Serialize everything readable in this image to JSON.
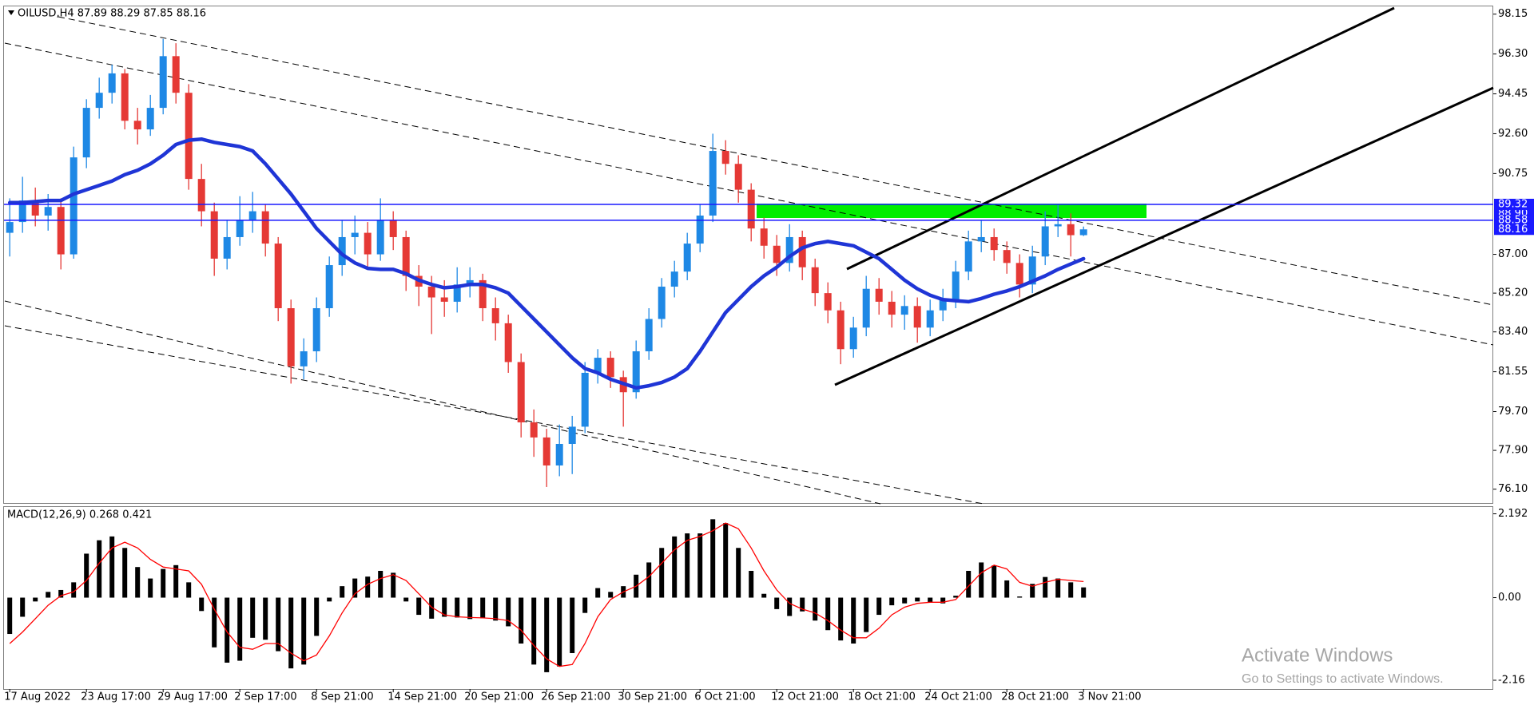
{
  "chart_data": [
    {
      "type": "candlestick",
      "title": "OILUSD,H4  87.89 88.29 87.85 88.16",
      "categories": [
        "17 Aug 2022",
        null,
        null,
        null,
        null,
        null,
        "23 Aug 17:00",
        null,
        null,
        null,
        null,
        null,
        "29 Aug 17:00",
        null,
        null,
        null,
        null,
        null,
        "2 Sep 17:00",
        null,
        null,
        null,
        null,
        null,
        "8 Sep 21:00",
        null,
        null,
        null,
        null,
        null,
        "14 Sep 21:00",
        null,
        null,
        null,
        null,
        null,
        "20 Sep 21:00",
        null,
        null,
        null,
        null,
        null,
        "26 Sep 21:00",
        null,
        null,
        null,
        null,
        null,
        "30 Sep 21:00",
        null,
        null,
        null,
        null,
        null,
        "6 Oct 21:00",
        null,
        null,
        null,
        null,
        null,
        "12 Oct 21:00",
        null,
        null,
        null,
        null,
        null,
        "18 Oct 21:00",
        null,
        null,
        null,
        null,
        null,
        "24 Oct 21:00",
        null,
        null,
        null,
        null,
        null,
        "28 Oct 21:00",
        null,
        null,
        null,
        null,
        null,
        "3 Nov 21:00"
      ],
      "open": [
        88.0,
        88.5,
        89.5,
        88.8,
        89.2,
        87.0,
        91.5,
        93.8,
        94.5,
        95.4,
        93.2,
        92.8,
        93.8,
        96.2,
        94.5,
        90.5,
        89.0,
        86.8,
        87.8,
        88.6,
        89.0,
        87.5,
        84.5,
        81.8,
        82.5,
        84.5,
        86.5,
        87.8,
        88.0,
        87.0,
        88.6,
        87.8,
        86.0,
        85.5,
        85.0,
        84.8,
        85.6,
        85.8,
        84.5,
        83.8,
        82.0,
        79.2,
        78.5,
        77.2,
        78.2,
        79.0,
        81.5,
        82.2,
        81.3,
        80.6,
        82.5,
        84.0,
        85.5,
        86.2,
        87.5,
        88.8,
        91.8,
        91.2,
        90.0,
        88.2,
        87.4,
        86.6,
        87.8,
        86.4,
        85.2,
        84.4,
        82.6,
        83.6,
        85.4,
        84.8,
        84.2,
        84.6,
        83.6,
        84.4,
        84.9,
        86.2,
        87.6,
        87.8,
        87.2,
        86.6,
        85.6,
        86.9,
        88.3,
        88.4,
        87.89
      ],
      "high": [
        89.6,
        90.6,
        90.1,
        89.8,
        89.6,
        92.0,
        94.2,
        95.2,
        95.8,
        95.6,
        93.8,
        94.4,
        97.0,
        96.8,
        94.9,
        91.2,
        89.4,
        88.6,
        89.7,
        89.9,
        89.3,
        87.8,
        84.9,
        83.1,
        85.0,
        86.9,
        88.6,
        88.8,
        88.5,
        89.6,
        89.0,
        88.1,
        86.5,
        86.0,
        85.8,
        86.4,
        86.4,
        86.1,
        85.0,
        84.2,
        82.4,
        79.8,
        78.9,
        79.1,
        79.5,
        82.0,
        82.6,
        82.5,
        81.6,
        83.0,
        84.5,
        85.9,
        86.7,
        88.0,
        89.3,
        92.6,
        92.3,
        91.6,
        90.3,
        88.7,
        87.9,
        88.4,
        88.1,
        86.8,
        85.7,
        84.8,
        84.1,
        86.0,
        85.9,
        85.3,
        85.1,
        85.0,
        84.9,
        85.4,
        86.7,
        88.1,
        88.6,
        88.2,
        87.6,
        87.0,
        87.4,
        89.0,
        89.3,
        88.9,
        88.29
      ],
      "low": [
        86.9,
        88.0,
        88.3,
        88.1,
        86.3,
        86.8,
        91.0,
        93.3,
        94.0,
        92.8,
        92.1,
        92.5,
        93.5,
        94.0,
        90.0,
        88.3,
        86.0,
        86.3,
        87.4,
        88.0,
        86.9,
        83.9,
        81.0,
        81.2,
        82.0,
        84.1,
        86.0,
        87.0,
        86.4,
        86.7,
        87.2,
        85.3,
        84.6,
        83.3,
        84.1,
        84.3,
        85.0,
        83.9,
        83.0,
        81.5,
        78.5,
        77.6,
        76.2,
        76.7,
        76.8,
        78.7,
        81.0,
        80.8,
        79.0,
        80.3,
        82.1,
        83.6,
        85.0,
        85.8,
        87.1,
        88.5,
        90.7,
        89.4,
        87.6,
        86.8,
        86.0,
        86.2,
        85.8,
        84.6,
        83.8,
        81.9,
        82.2,
        83.2,
        84.2,
        83.6,
        83.5,
        82.9,
        83.2,
        83.9,
        84.5,
        85.8,
        87.1,
        86.7,
        86.1,
        85.0,
        85.2,
        86.5,
        87.8,
        86.9,
        87.85
      ],
      "close": [
        88.5,
        89.5,
        88.8,
        89.2,
        87.0,
        91.5,
        93.8,
        94.5,
        95.4,
        93.2,
        92.8,
        93.8,
        96.2,
        94.5,
        90.5,
        89.0,
        86.8,
        87.8,
        88.6,
        89.0,
        87.5,
        84.5,
        81.8,
        82.5,
        84.5,
        86.5,
        87.8,
        88.0,
        87.0,
        88.6,
        87.8,
        86.0,
        85.5,
        85.0,
        84.8,
        85.6,
        85.8,
        84.5,
        83.8,
        82.0,
        79.2,
        78.5,
        77.2,
        78.2,
        79.0,
        81.5,
        82.2,
        81.3,
        80.6,
        82.5,
        84.0,
        85.5,
        86.2,
        87.5,
        88.8,
        91.8,
        91.2,
        90.0,
        88.2,
        87.4,
        86.6,
        87.8,
        86.4,
        85.2,
        84.4,
        82.6,
        83.6,
        85.4,
        84.8,
        84.2,
        84.6,
        83.6,
        84.4,
        84.9,
        86.2,
        87.6,
        87.8,
        87.2,
        86.6,
        85.6,
        86.9,
        88.3,
        88.4,
        87.89,
        88.16
      ],
      "up_color": "#1e88e5",
      "down_color": "#e53935",
      "ma": {
        "color": "#1f35d6",
        "values": [
          89.4,
          89.4,
          89.45,
          89.5,
          89.5,
          89.8,
          90.0,
          90.2,
          90.4,
          90.7,
          90.9,
          91.2,
          91.6,
          92.1,
          92.3,
          92.35,
          92.2,
          92.1,
          92.0,
          91.8,
          91.2,
          90.5,
          89.8,
          89.0,
          88.2,
          87.6,
          87.0,
          86.6,
          86.35,
          86.3,
          86.3,
          86.1,
          85.8,
          85.6,
          85.45,
          85.5,
          85.6,
          85.6,
          85.45,
          85.2,
          84.6,
          84.0,
          83.4,
          82.8,
          82.2,
          81.7,
          81.5,
          81.2,
          81.0,
          80.8,
          80.9,
          81.05,
          81.3,
          81.7,
          82.5,
          83.4,
          84.3,
          84.9,
          85.5,
          86.0,
          86.4,
          86.9,
          87.3,
          87.5,
          87.6,
          87.5,
          87.4,
          87.1,
          86.8,
          86.3,
          85.8,
          85.4,
          85.1,
          84.9,
          84.85,
          84.8,
          84.95,
          85.15,
          85.3,
          85.5,
          85.75,
          86.0,
          86.3,
          86.55,
          86.8
        ]
      },
      "ylim": [
        75.42,
        98.51
      ],
      "yticks": [
        98.15,
        {
          "value": 96.3,
          "label": "96.30"
        },
        94.45,
        {
          "value": 92.6,
          "label": "92.60"
        },
        90.75,
        {
          "value": 87,
          "label": "87.00"
        },
        {
          "value": 85.2,
          "label": "85.20"
        },
        {
          "value": 83.4,
          "label": "83.40"
        },
        81.55,
        {
          "value": 79.7,
          "label": "79.70"
        },
        {
          "value": 77.9,
          "label": "77.90"
        },
        {
          "value": 76.1,
          "label": "76.10"
        }
      ],
      "price_labels": [
        {
          "value": 88.9,
          "label": "88.90",
          "color": "#1a1aff"
        },
        {
          "value": 89.32,
          "label": "89.32",
          "color": "#1a1aff",
          "line": true
        },
        {
          "value": 88.58,
          "label": "88.58",
          "color": "#1a1aff",
          "line": true
        },
        {
          "value": 88.16,
          "label": "88.16",
          "color": "#1a1aff"
        }
      ],
      "grid": false
    },
    {
      "type": "macd",
      "title": "MACD(12,26,9) 0.268 0.421",
      "histogram": {
        "color": "#000000",
        "values": [
          -0.95,
          -0.5,
          -0.1,
          0.15,
          0.2,
          0.4,
          1.15,
          1.5,
          1.6,
          1.3,
          0.8,
          0.5,
          0.75,
          0.85,
          0.4,
          -0.35,
          -1.3,
          -1.7,
          -1.65,
          -1.05,
          -1.1,
          -1.4,
          -1.85,
          -1.75,
          -1.0,
          -0.1,
          0.3,
          0.5,
          0.55,
          0.7,
          0.65,
          -0.1,
          -0.45,
          -0.55,
          -0.5,
          -0.52,
          -0.56,
          -0.54,
          -0.6,
          -0.75,
          -1.2,
          -1.75,
          -1.95,
          -1.8,
          -1.45,
          -0.4,
          0.25,
          0.15,
          0.3,
          0.6,
          0.92,
          1.3,
          1.6,
          1.68,
          1.68,
          2.05,
          1.95,
          1.3,
          0.7,
          0.1,
          -0.3,
          -0.48,
          -0.36,
          -0.6,
          -0.85,
          -1.12,
          -1.2,
          -0.9,
          -0.45,
          -0.2,
          -0.15,
          -0.1,
          -0.12,
          -0.15,
          0.05,
          0.7,
          0.92,
          0.84,
          0.45,
          0.03,
          0.36,
          0.54,
          0.5,
          0.4,
          0.268
        ]
      },
      "signal": {
        "color": "#ff0000",
        "values": [
          -1.2,
          -0.9,
          -0.55,
          -0.2,
          0.05,
          0.15,
          0.45,
          0.9,
          1.3,
          1.45,
          1.3,
          1.0,
          0.8,
          0.75,
          0.7,
          0.35,
          -0.3,
          -0.9,
          -1.3,
          -1.35,
          -1.2,
          -1.2,
          -1.45,
          -1.65,
          -1.5,
          -1.0,
          -0.4,
          0.1,
          0.35,
          0.5,
          0.6,
          0.45,
          0.1,
          -0.25,
          -0.45,
          -0.5,
          -0.52,
          -0.53,
          -0.55,
          -0.6,
          -0.85,
          -1.25,
          -1.6,
          -1.8,
          -1.75,
          -1.2,
          -0.5,
          -0.05,
          0.15,
          0.3,
          0.55,
          0.9,
          1.25,
          1.5,
          1.6,
          1.75,
          1.95,
          1.8,
          1.3,
          0.7,
          0.2,
          -0.15,
          -0.3,
          -0.4,
          -0.6,
          -0.85,
          -1.05,
          -1.05,
          -0.8,
          -0.45,
          -0.25,
          -0.15,
          -0.12,
          -0.12,
          -0.05,
          0.3,
          0.65,
          0.85,
          0.75,
          0.4,
          0.3,
          0.4,
          0.48,
          0.45,
          0.421
        ]
      },
      "ylim": [
        -2.39,
        2.37
      ],
      "yticks": [
        2.192,
        {
          "value": 0,
          "label": "0.00"
        },
        -2.16
      ]
    }
  ],
  "watermark": {
    "line1": "Activate Windows",
    "line2": "Go to Settings to activate Windows."
  }
}
